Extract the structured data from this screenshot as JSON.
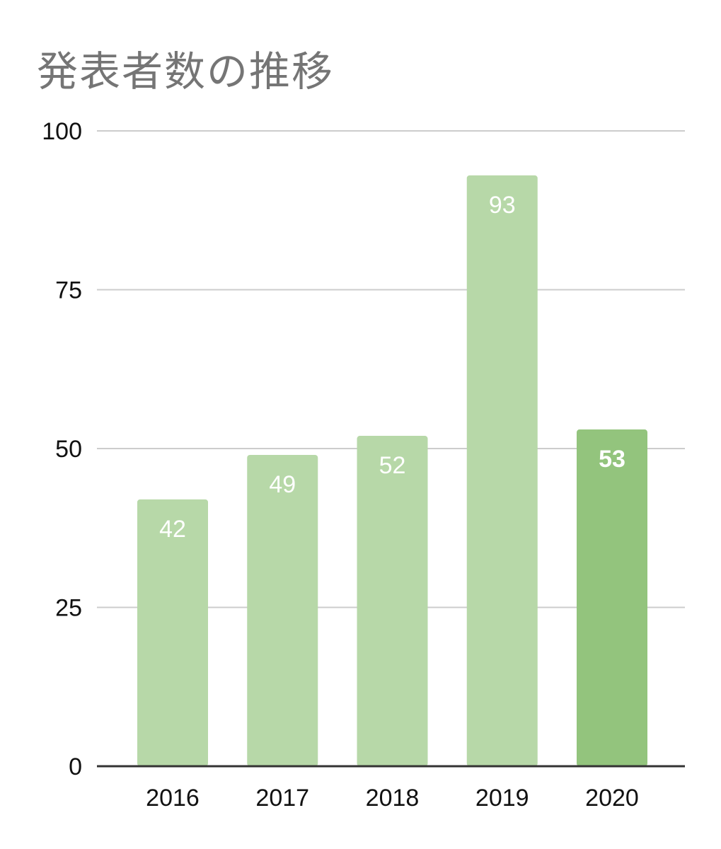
{
  "chart_data": {
    "type": "bar",
    "title": "発表者数の推移",
    "xlabel": "",
    "ylabel": "",
    "categories": [
      "2016",
      "2017",
      "2018",
      "2019",
      "2020"
    ],
    "values": [
      42,
      49,
      52,
      93,
      53
    ],
    "data_labels": [
      "42",
      "49",
      "52",
      "93",
      "53"
    ],
    "ylim": [
      0,
      100
    ],
    "yticks": [
      0,
      25,
      50,
      75,
      100
    ],
    "ytick_labels": [
      "0",
      "25",
      "50",
      "75",
      "100"
    ],
    "grid": true,
    "legend": "none",
    "colors": {
      "bar": "#b7d8a8",
      "highlight_bar": "#93c47d",
      "grid": "#cccccc",
      "baseline": "#333333",
      "title": "#757575",
      "data_label": "#ffffff"
    },
    "highlight_index": 4
  }
}
